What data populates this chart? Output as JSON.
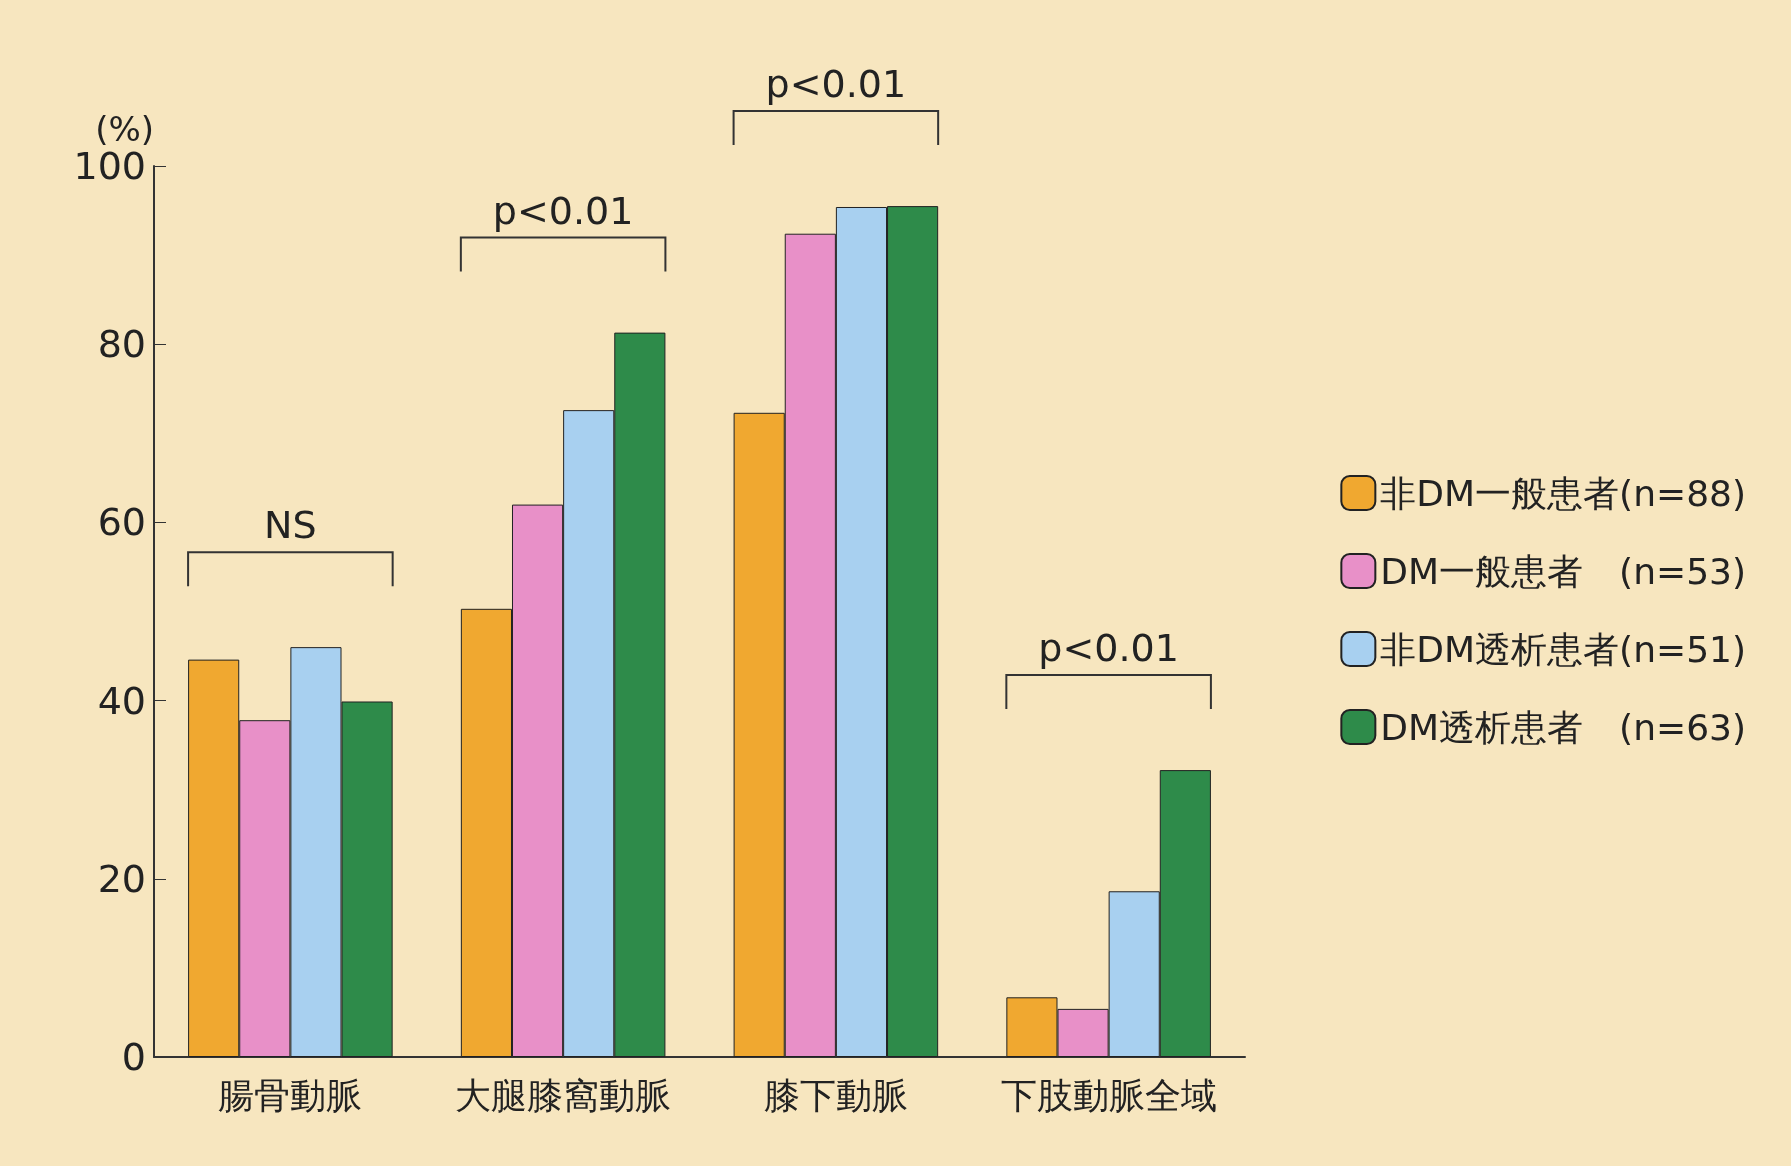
{
  "chart_data": {
    "type": "bar",
    "ylabel": "(%)",
    "categories": [
      "腸骨動脈",
      "大腿膝窩動脈",
      "膝下動脈",
      "下肢動脈全域"
    ],
    "series": [
      {
        "name": "非DM一般患者(n=88)",
        "color": "#f0a830",
        "values": [
          44.6,
          50.3,
          72.3,
          6.7
        ]
      },
      {
        "name": "DM一般患者　(n=53)",
        "color": "#e890c8",
        "values": [
          37.8,
          62,
          92.4,
          5.4
        ]
      },
      {
        "name": "非DM透析患者(n=51)",
        "color": "#a8d0f0",
        "values": [
          46,
          72.6,
          95.4,
          18.6
        ]
      },
      {
        "name": "DM透析患者　(n=63)",
        "color": "#2e8b4a",
        "values": [
          39.9,
          81.3,
          95.5,
          32.2
        ]
      }
    ],
    "ylim": [
      0,
      100
    ],
    "yticks": [
      0,
      20,
      40,
      60,
      80,
      100
    ],
    "grid": false,
    "legend": "right",
    "annotations": [
      "NS",
      "p<0.01",
      "p<0.01",
      "p<0.01"
    ]
  }
}
